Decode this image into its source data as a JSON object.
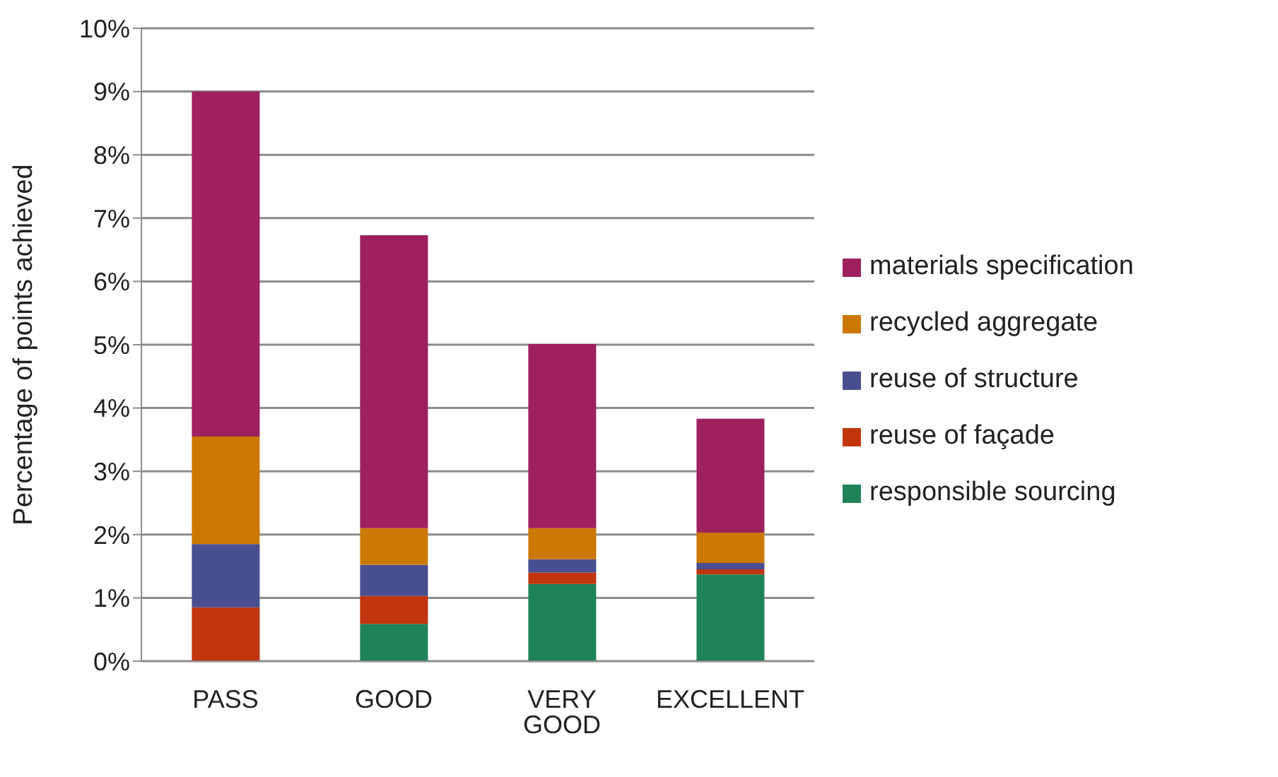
{
  "chart_data": {
    "type": "bar",
    "stacked": true,
    "ylabel": "Percentage of points achieved",
    "categories": [
      "PASS",
      "GOOD",
      "VERY GOOD",
      "EXCELLENT"
    ],
    "series": [
      {
        "name": "responsible sourcing",
        "color": "#1f8259",
        "values": [
          0,
          0.59,
          1.22,
          1.37
        ]
      },
      {
        "name": "reuse of façade",
        "color": "#c0350d",
        "values": [
          0.85,
          0.44,
          0.18,
          0.08
        ]
      },
      {
        "name": "reuse of structure",
        "color": "#484e8f",
        "values": [
          1.0,
          0.49,
          0.21,
          0.1
        ]
      },
      {
        "name": "recycled aggregate",
        "color": "#cc7804",
        "values": [
          1.7,
          0.58,
          0.49,
          0.48
        ]
      },
      {
        "name": "materials specification",
        "color": "#9e215e",
        "values": [
          5.45,
          4.63,
          2.91,
          1.8
        ]
      }
    ],
    "ylim": [
      0,
      10
    ],
    "yticks": [
      {
        "value": 0,
        "label": "0%"
      },
      {
        "value": 1,
        "label": "1%"
      },
      {
        "value": 2,
        "label": "2%"
      },
      {
        "value": 3,
        "label": "3%"
      },
      {
        "value": 4,
        "label": "4%"
      },
      {
        "value": 5,
        "label": "5%"
      },
      {
        "value": 6,
        "label": "6%"
      },
      {
        "value": 7,
        "label": "7%"
      },
      {
        "value": 8,
        "label": "8%"
      },
      {
        "value": 9,
        "label": "9%"
      },
      {
        "value": 10,
        "label": "10%"
      }
    ],
    "grid": "y",
    "legend": "right"
  }
}
